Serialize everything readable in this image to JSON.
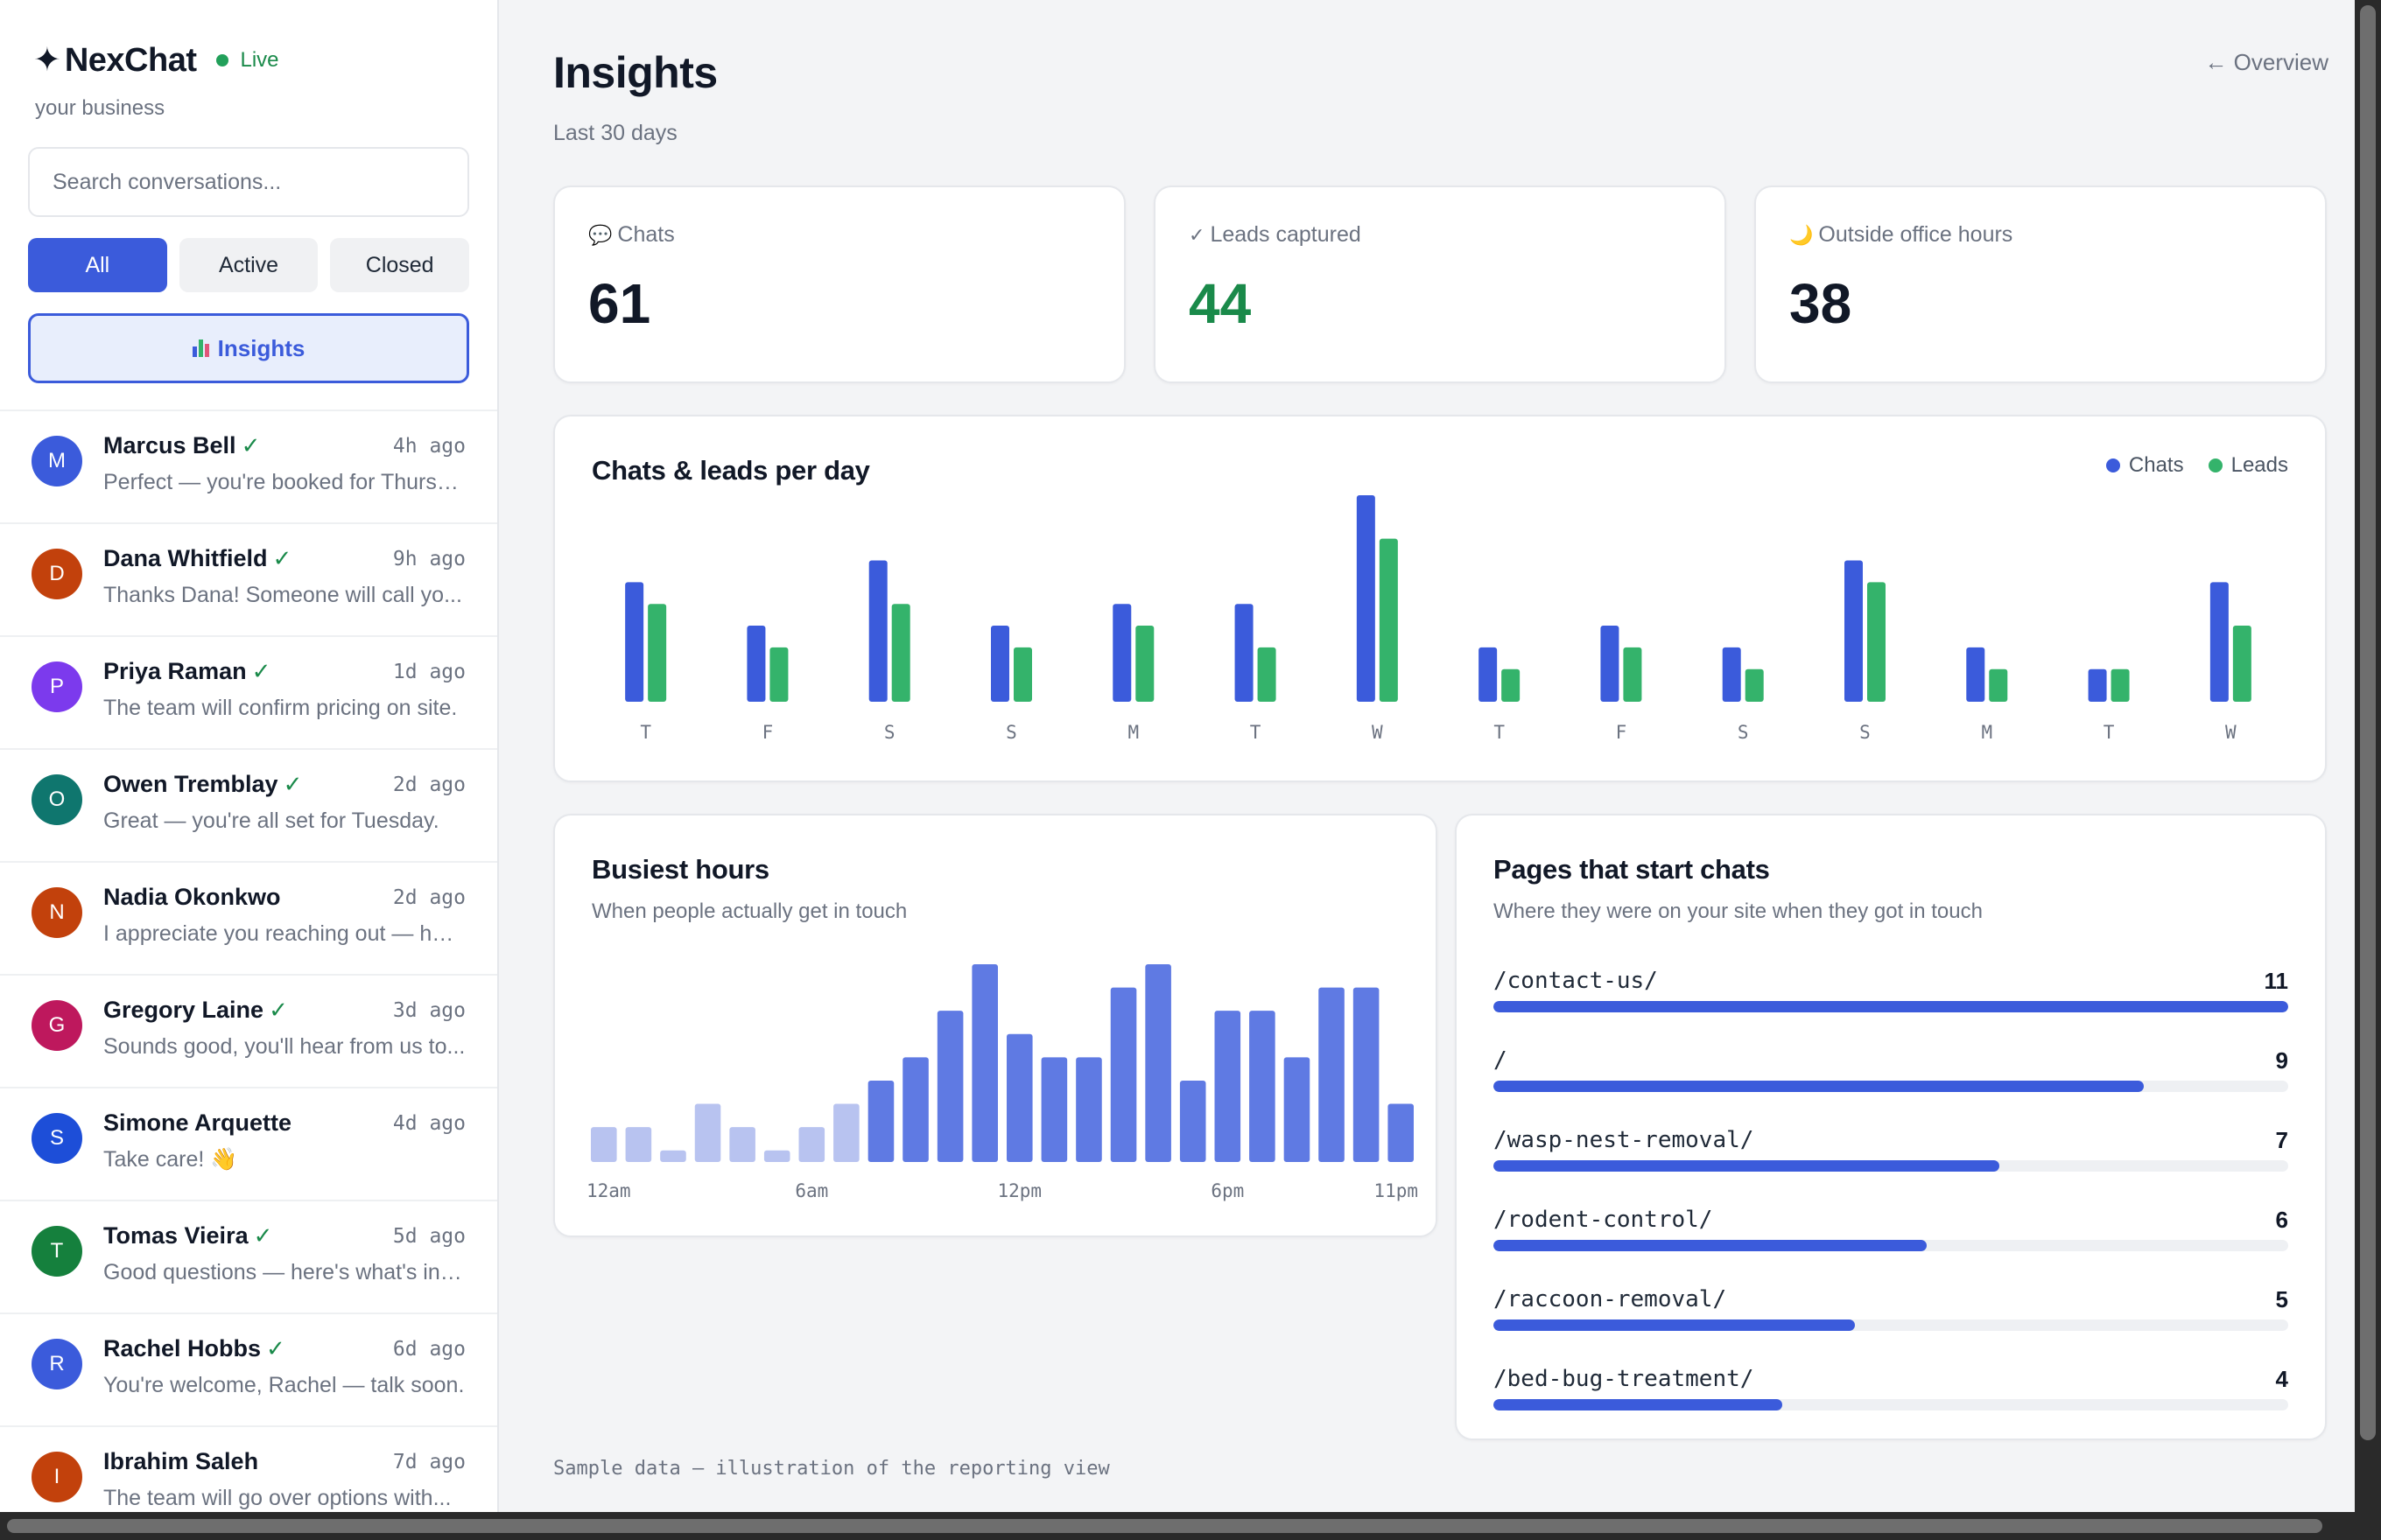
{
  "brand": {
    "star": "✦",
    "name": "NexChat",
    "status": "Live",
    "subtitle": "your business"
  },
  "search": {
    "placeholder": "Search conversations..."
  },
  "filters": [
    {
      "label": "All",
      "active": true
    },
    {
      "label": "Active",
      "active": false
    },
    {
      "label": "Closed",
      "active": false
    }
  ],
  "insights_button": {
    "label": "Insights",
    "icon": "bar-chart-icon"
  },
  "conversations": [
    {
      "initial": "M",
      "name": "Marcus Bell",
      "verified": true,
      "time": "4h  ago",
      "preview": "Perfect — you're booked for Thursd...",
      "color": "#3b5bdb"
    },
    {
      "initial": "D",
      "name": "Dana Whitfield",
      "verified": true,
      "time": "9h  ago",
      "preview": "Thanks Dana! Someone will call yo...",
      "color": "#c2410c"
    },
    {
      "initial": "P",
      "name": "Priya Raman",
      "verified": true,
      "time": "1d  ago",
      "preview": "The team will confirm pricing on site.",
      "color": "#7c3aed"
    },
    {
      "initial": "O",
      "name": "Owen Tremblay",
      "verified": true,
      "time": "2d  ago",
      "preview": "Great — you're all set for Tuesday.",
      "color": "#0f766e"
    },
    {
      "initial": "N",
      "name": "Nadia Okonkwo",
      "verified": false,
      "time": "2d  ago",
      "preview": "I appreciate you reaching out — her...",
      "color": "#c2410c"
    },
    {
      "initial": "G",
      "name": "Gregory Laine",
      "verified": true,
      "time": "3d  ago",
      "preview": "Sounds good, you'll hear from us to...",
      "color": "#be185d"
    },
    {
      "initial": "S",
      "name": "Simone Arquette",
      "verified": false,
      "time": "4d  ago",
      "preview": "Take care! 👋",
      "color": "#1d4ed8"
    },
    {
      "initial": "T",
      "name": "Tomas Vieira",
      "verified": true,
      "time": "5d  ago",
      "preview": "Good questions — here's what's inc...",
      "color": "#15803d"
    },
    {
      "initial": "R",
      "name": "Rachel Hobbs",
      "verified": true,
      "time": "6d  ago",
      "preview": "You're welcome, Rachel — talk soon.",
      "color": "#3b5bdb"
    },
    {
      "initial": "I",
      "name": "Ibrahim Saleh",
      "verified": false,
      "time": "7d  ago",
      "preview": "The team will go over options with...",
      "color": "#c2410c"
    }
  ],
  "header": {
    "title": "Insights",
    "subtitle": "Last 30 days",
    "back_link": "← Overview"
  },
  "stats": {
    "chats": {
      "icon": "speech-bubble-icon",
      "label": "Chats",
      "value": "61"
    },
    "leads": {
      "icon": "check-icon",
      "label": "Leads captured",
      "value": "44"
    },
    "outside": {
      "icon": "moon-icon",
      "label": "Outside office hours",
      "value": "38"
    }
  },
  "colors": {
    "accent": "#3b5bdb",
    "chats": "#3b5bdb",
    "leads": "#34b36b",
    "hours_light": "#b8c3f0",
    "hours_dark": "#5f7ae3",
    "green_text": "#1a8a4a"
  },
  "daily_chart": {
    "title": "Chats & leads per day",
    "legend": [
      "Chats",
      "Leads"
    ]
  },
  "hours_chart": {
    "title": "Busiest hours",
    "subtitle": "When people actually get in touch",
    "tick_labels": [
      "12am",
      "6am",
      "12pm",
      "6pm",
      "11pm"
    ]
  },
  "pages": {
    "title": "Pages that start chats",
    "subtitle": "Where they were on your site when they got in touch",
    "max": 11,
    "items": [
      {
        "path": "/contact-us/",
        "count": 11
      },
      {
        "path": "/",
        "count": 9
      },
      {
        "path": "/wasp-nest-removal/",
        "count": 7
      },
      {
        "path": "/rodent-control/",
        "count": 6
      },
      {
        "path": "/raccoon-removal/",
        "count": 5
      },
      {
        "path": "/bed-bug-treatment/",
        "count": 4
      }
    ]
  },
  "footnote": "Sample data — illustration of the reporting view",
  "chart_data": [
    {
      "type": "bar",
      "title": "Chats & leads per day",
      "categories": [
        "T",
        "F",
        "S",
        "S",
        "M",
        "T",
        "W",
        "T",
        "F",
        "S",
        "S",
        "M",
        "T",
        "W"
      ],
      "series": [
        {
          "name": "Chats",
          "values": [
            5.5,
            3.5,
            6.5,
            3.5,
            4.5,
            4.5,
            9.5,
            2.5,
            3.5,
            2.5,
            6.5,
            2.5,
            1.5,
            5.5
          ]
        },
        {
          "name": "Leads",
          "values": [
            4.5,
            2.5,
            4.5,
            2.5,
            3.5,
            2.5,
            7.5,
            1.5,
            2.5,
            1.5,
            5.5,
            1.5,
            1.5,
            3.5
          ]
        }
      ],
      "legend": "top-right"
    },
    {
      "type": "bar",
      "title": "Busiest hours",
      "categories": [
        "12am",
        "1am",
        "2am",
        "3am",
        "4am",
        "5am",
        "6am",
        "7am",
        "8am",
        "9am",
        "10am",
        "11am",
        "12pm",
        "1pm",
        "2pm",
        "3pm",
        "4pm",
        "5pm",
        "6pm",
        "7pm",
        "8pm",
        "9pm",
        "10pm",
        "11pm"
      ],
      "tick_labels": [
        "12am",
        "6am",
        "12pm",
        "6pm",
        "11pm"
      ],
      "values": [
        1.5,
        1.5,
        0.5,
        2.5,
        1.5,
        0.5,
        1.5,
        2.5,
        3.5,
        4.5,
        6.5,
        8.5,
        5.5,
        4.5,
        4.5,
        7.5,
        8.5,
        3.5,
        6.5,
        6.5,
        4.5,
        7.5,
        7.5,
        2.5
      ],
      "highlighted_from_index": 8
    },
    {
      "type": "bar",
      "title": "Pages that start chats",
      "categories": [
        "/contact-us/",
        "/",
        "/wasp-nest-removal/",
        "/rodent-control/",
        "/raccoon-removal/",
        "/bed-bug-treatment/"
      ],
      "values": [
        11,
        9,
        7,
        6,
        5,
        4
      ],
      "orientation": "horizontal"
    }
  ]
}
